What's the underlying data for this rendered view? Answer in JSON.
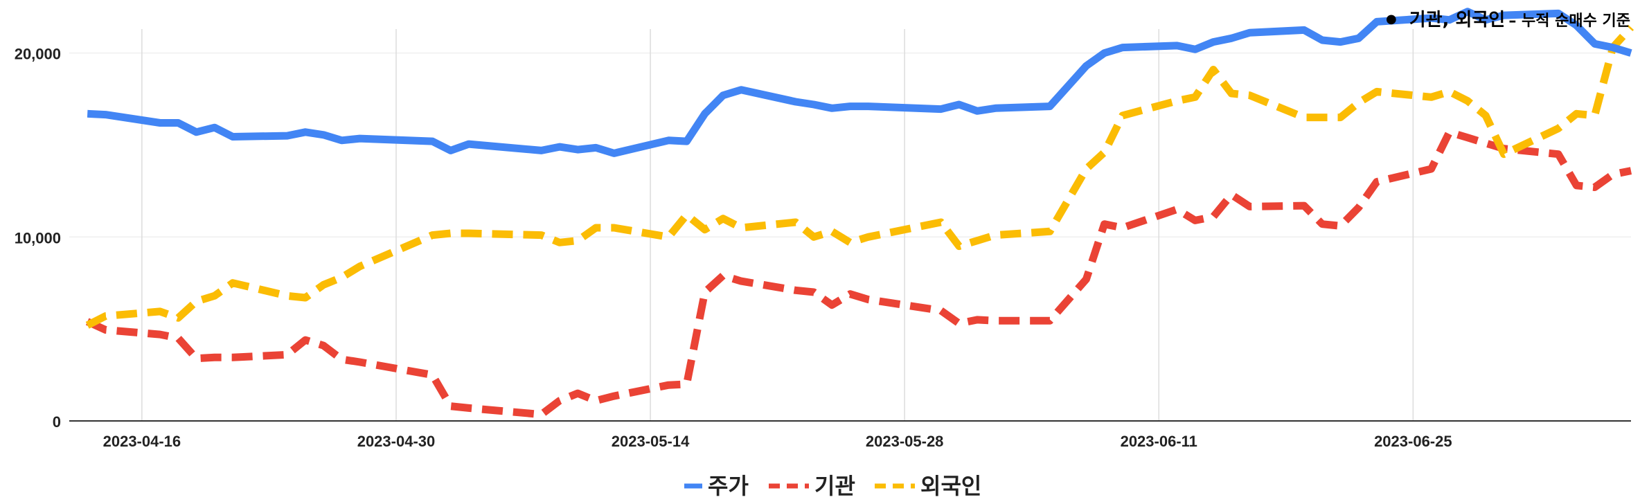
{
  "annotation": {
    "main": "기관, 외국인",
    "sub": "– 누적 순매수 기준"
  },
  "colors": {
    "주가": "#4285F4",
    "기관": "#EA4335",
    "외국인": "#FBBC04",
    "grid": "#dcdcdc"
  },
  "chart_data": {
    "type": "line",
    "title": "",
    "xlabel": "",
    "ylabel": "",
    "ylim": [
      0,
      21000
    ],
    "yticks": [
      0,
      10000,
      20000
    ],
    "ytick_labels": [
      "0",
      "10,000",
      "20,000"
    ],
    "xtick_labels": [
      "2023-04-16",
      "2023-04-30",
      "2023-05-14",
      "2023-05-28",
      "2023-06-11",
      "2023-06-25"
    ],
    "grid": "vertical",
    "legend": "bottom",
    "x": [
      "2023-04-13",
      "2023-04-14",
      "2023-04-17",
      "2023-04-18",
      "2023-04-19",
      "2023-04-20",
      "2023-04-21",
      "2023-04-24",
      "2023-04-25",
      "2023-04-26",
      "2023-04-27",
      "2023-04-28",
      "2023-05-02",
      "2023-05-03",
      "2023-05-04",
      "2023-05-08",
      "2023-05-09",
      "2023-05-10",
      "2023-05-11",
      "2023-05-12",
      "2023-05-15",
      "2023-05-16",
      "2023-05-17",
      "2023-05-18",
      "2023-05-19",
      "2023-05-22",
      "2023-05-23",
      "2023-05-24",
      "2023-05-25",
      "2023-05-26",
      "2023-05-30",
      "2023-05-31",
      "2023-06-01",
      "2023-06-02",
      "2023-06-05",
      "2023-06-07",
      "2023-06-08",
      "2023-06-09",
      "2023-06-12",
      "2023-06-13",
      "2023-06-14",
      "2023-06-15",
      "2023-06-16",
      "2023-06-19",
      "2023-06-20",
      "2023-06-21",
      "2023-06-22",
      "2023-06-23",
      "2023-06-26",
      "2023-06-27",
      "2023-06-28",
      "2023-06-29",
      "2023-06-30",
      "2023-07-03",
      "2023-07-04",
      "2023-07-05",
      "2023-07-06",
      "2023-07-07"
    ],
    "series": [
      {
        "name": "주가",
        "style": "solid",
        "values": [
          16700,
          16650,
          16200,
          16200,
          15700,
          15950,
          15450,
          15500,
          15700,
          15550,
          15250,
          15350,
          15200,
          14700,
          15050,
          14700,
          14900,
          14750,
          14850,
          14550,
          15250,
          15200,
          16700,
          17700,
          18000,
          17350,
          17200,
          17000,
          17100,
          17100,
          16950,
          17200,
          16850,
          17000,
          17100,
          19300,
          20000,
          20300,
          20400,
          20200,
          20600,
          20800,
          21100,
          21250,
          20700,
          20600,
          20800,
          21700,
          21900,
          21800,
          22250,
          21800,
          22050,
          22150,
          21500,
          20500,
          20300,
          20000
        ]
      },
      {
        "name": "기관",
        "style": "dashed",
        "values": [
          5400,
          4950,
          4700,
          4500,
          3400,
          3450,
          3450,
          3600,
          4400,
          4100,
          3350,
          3200,
          2500,
          800,
          700,
          350,
          1100,
          1500,
          1100,
          1350,
          1950,
          2000,
          7000,
          7900,
          7600,
          7100,
          7000,
          6300,
          6900,
          6600,
          6000,
          5300,
          5500,
          5450,
          5450,
          7700,
          10700,
          10500,
          11500,
          10900,
          11100,
          12300,
          11650,
          11700,
          10700,
          10600,
          11600,
          13000,
          13700,
          15700,
          15400,
          15100,
          14800,
          14500,
          12800,
          12700,
          13400,
          13600
        ]
      },
      {
        "name": "외국인",
        "style": "dashed",
        "values": [
          5200,
          5700,
          5950,
          5600,
          6500,
          6800,
          7500,
          6800,
          6700,
          7400,
          7800,
          8400,
          10100,
          10200,
          10200,
          10100,
          9700,
          9800,
          10500,
          10500,
          10000,
          11200,
          10400,
          11000,
          10500,
          10800,
          10000,
          10300,
          9700,
          10000,
          10800,
          9500,
          9800,
          10100,
          10300,
          13700,
          14600,
          16600,
          17400,
          17600,
          19100,
          17800,
          17700,
          16500,
          16500,
          16500,
          17300,
          17900,
          17600,
          17900,
          17400,
          16600,
          14500,
          15900,
          16700,
          16600,
          20300,
          21400
        ]
      }
    ]
  }
}
